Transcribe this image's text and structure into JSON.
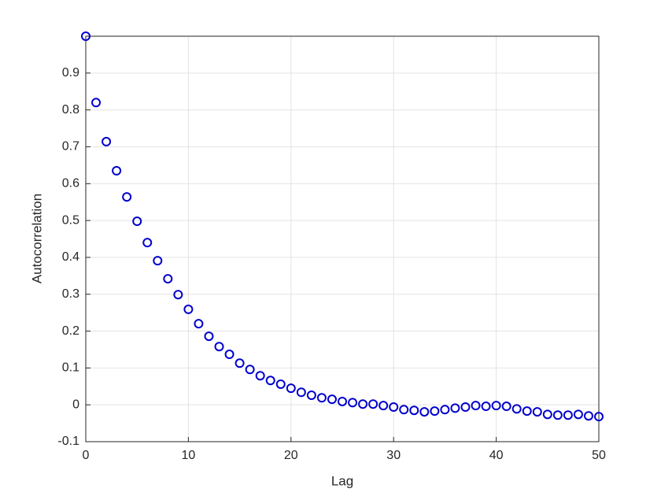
{
  "chart_data": {
    "type": "scatter",
    "xlabel": "Lag",
    "ylabel": "Autocorrelation",
    "x": [
      0,
      1,
      2,
      3,
      4,
      5,
      6,
      7,
      8,
      9,
      10,
      11,
      12,
      13,
      14,
      15,
      16,
      17,
      18,
      19,
      20,
      21,
      22,
      23,
      24,
      25,
      26,
      27,
      28,
      29,
      30,
      31,
      32,
      33,
      34,
      35,
      36,
      37,
      38,
      39,
      40,
      41,
      42,
      43,
      44,
      45,
      46,
      47,
      48,
      49,
      50
    ],
    "series": [
      {
        "color": "#0000cd",
        "values": [
          1.0,
          0.82,
          0.714,
          0.635,
          0.564,
          0.498,
          0.44,
          0.391,
          0.342,
          0.299,
          0.259,
          0.22,
          0.186,
          0.158,
          0.137,
          0.113,
          0.096,
          0.079,
          0.066,
          0.056,
          0.045,
          0.034,
          0.026,
          0.019,
          0.015,
          0.009,
          0.006,
          0.002,
          0.002,
          -0.002,
          -0.006,
          -0.013,
          -0.015,
          -0.019,
          -0.017,
          -0.013,
          -0.009,
          -0.006,
          -0.002,
          -0.004,
          -0.002,
          -0.004,
          -0.011,
          -0.017,
          -0.019,
          -0.026,
          -0.028,
          -0.028,
          -0.026,
          -0.03,
          -0.032
        ]
      }
    ],
    "xlim": [
      0,
      50
    ],
    "xticks": [
      0,
      10,
      20,
      30,
      40,
      50
    ],
    "ylim": [
      -0.1,
      1.0
    ],
    "yticks": [
      -0.1,
      0,
      0.1,
      0.2,
      0.3,
      0.4,
      0.5,
      0.6,
      0.7,
      0.8,
      0.9
    ],
    "grid": true
  }
}
